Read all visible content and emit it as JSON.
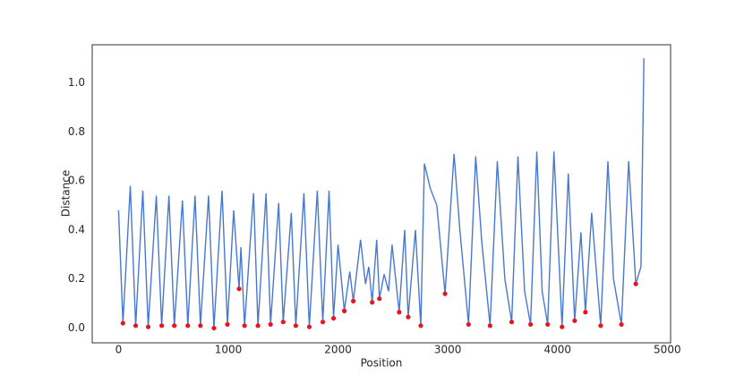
{
  "chart_data": {
    "type": "line",
    "xlabel": "Position",
    "ylabel": "Distance",
    "xlim": [
      -240,
      5030
    ],
    "ylim": [
      -0.06,
      1.155
    ],
    "xticks": [
      0,
      1000,
      2000,
      3000,
      4000,
      5000
    ],
    "yticks": [
      {
        "value": 0,
        "label": "0.0"
      },
      {
        "value": 0.2,
        "label": "0.2"
      },
      {
        "value": 0.4,
        "label": "0.4"
      },
      {
        "value": 0.6,
        "label": "0.6"
      },
      {
        "value": 0.8,
        "label": "0.8"
      },
      {
        "value": 1.0,
        "label": "1.0"
      }
    ],
    "grid": false,
    "line": {
      "color": "#4878cf",
      "x": [
        0,
        40,
        107,
        156,
        221,
        270,
        344,
        393,
        459,
        508,
        582,
        631,
        697,
        746,
        820,
        869,
        943,
        992,
        1049,
        1098,
        1115,
        1148,
        1230,
        1270,
        1344,
        1385,
        1459,
        1500,
        1574,
        1615,
        1689,
        1738,
        1811,
        1861,
        1918,
        1959,
        2000,
        2057,
        2107,
        2139,
        2205,
        2250,
        2280,
        2311,
        2352,
        2377,
        2420,
        2460,
        2492,
        2557,
        2607,
        2639,
        2705,
        2754,
        2787,
        2840,
        2900,
        2975,
        3057,
        3110,
        3189,
        3254,
        3310,
        3385,
        3451,
        3520,
        3582,
        3639,
        3700,
        3754,
        3811,
        3860,
        3910,
        3967,
        4041,
        4098,
        4156,
        4213,
        4254,
        4311,
        4393,
        4459,
        4510,
        4582,
        4648,
        4713,
        4760,
        4787
      ],
      "y": [
        0.48,
        0.02,
        0.58,
        0.01,
        0.56,
        0.005,
        0.54,
        0.01,
        0.54,
        0.01,
        0.52,
        0.01,
        0.54,
        0.01,
        0.54,
        0.0,
        0.56,
        0.015,
        0.48,
        0.16,
        0.33,
        0.01,
        0.55,
        0.01,
        0.55,
        0.015,
        0.51,
        0.025,
        0.47,
        0.01,
        0.55,
        0.005,
        0.56,
        0.025,
        0.56,
        0.04,
        0.34,
        0.07,
        0.23,
        0.11,
        0.36,
        0.18,
        0.25,
        0.105,
        0.36,
        0.12,
        0.22,
        0.15,
        0.34,
        0.065,
        0.4,
        0.045,
        0.4,
        0.01,
        0.67,
        0.57,
        0.5,
        0.14,
        0.71,
        0.4,
        0.015,
        0.7,
        0.35,
        0.01,
        0.68,
        0.2,
        0.025,
        0.7,
        0.15,
        0.015,
        0.72,
        0.15,
        0.015,
        0.72,
        0.005,
        0.63,
        0.03,
        0.39,
        0.065,
        0.47,
        0.01,
        0.68,
        0.2,
        0.015,
        0.68,
        0.18,
        0.25,
        1.1
      ]
    },
    "points": {
      "color": "#e8141e",
      "x": [
        40,
        156,
        270,
        393,
        508,
        631,
        746,
        869,
        992,
        1098,
        1148,
        1270,
        1385,
        1500,
        1615,
        1738,
        1861,
        1959,
        2057,
        2139,
        2311,
        2377,
        2557,
        2639,
        2754,
        2975,
        3189,
        3385,
        3582,
        3754,
        3910,
        4041,
        4156,
        4254,
        4393,
        4582,
        4713
      ],
      "y": [
        0.02,
        0.01,
        0.005,
        0.01,
        0.01,
        0.01,
        0.01,
        0.0,
        0.015,
        0.16,
        0.01,
        0.01,
        0.015,
        0.025,
        0.01,
        0.005,
        0.025,
        0.04,
        0.07,
        0.11,
        0.105,
        0.12,
        0.065,
        0.045,
        0.01,
        0.14,
        0.015,
        0.01,
        0.025,
        0.015,
        0.015,
        0.005,
        0.03,
        0.065,
        0.01,
        0.015,
        0.18
      ]
    }
  }
}
